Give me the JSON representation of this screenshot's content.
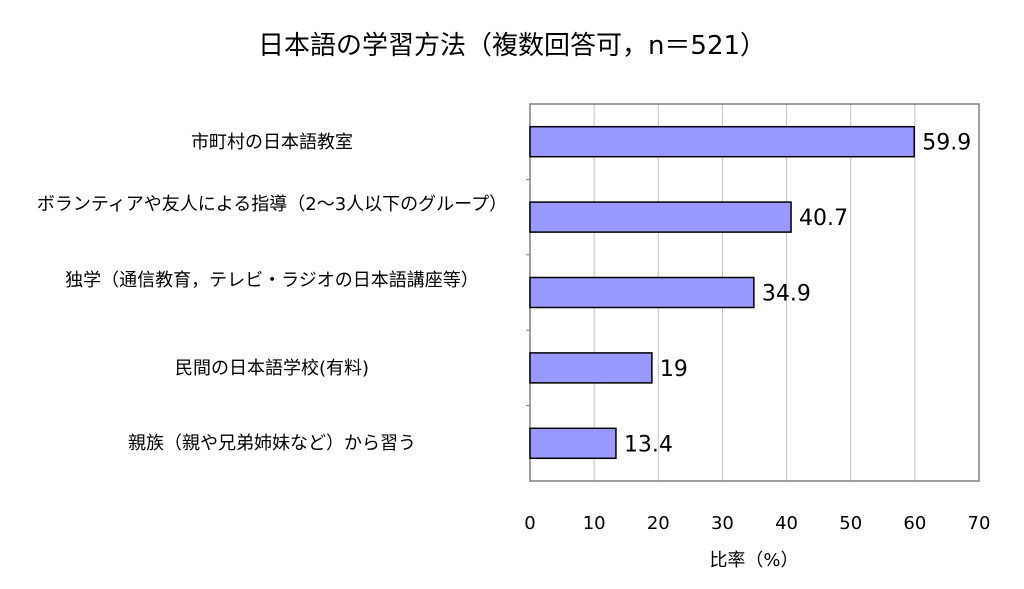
{
  "chart_data": {
    "type": "bar",
    "orientation": "horizontal",
    "title": "日本語の学習方法（複数回答可，n＝521）",
    "xlabel": "比率（%）",
    "ylabel": "",
    "xlim": [
      0,
      70
    ],
    "xticks": [
      "0",
      "10",
      "20",
      "30",
      "40",
      "50",
      "60",
      "70"
    ],
    "grid": true,
    "categories": [
      "市町村の日本語教室",
      "ボランティアや友人による指導（2～3人以下のグループ）",
      "独学（通信教育，テレビ・ラジオの日本語講座等）",
      "民間の日本語学校(有料)",
      "親族（親や兄弟姉妹など）から習う"
    ],
    "values": [
      59.9,
      40.7,
      34.9,
      19,
      13.4
    ],
    "value_labels": [
      "59.9",
      "40.7",
      "34.9",
      "19",
      "13.4"
    ],
    "bar_color": "#9999ff",
    "bar_border_color": "#000000",
    "legend": "none"
  }
}
